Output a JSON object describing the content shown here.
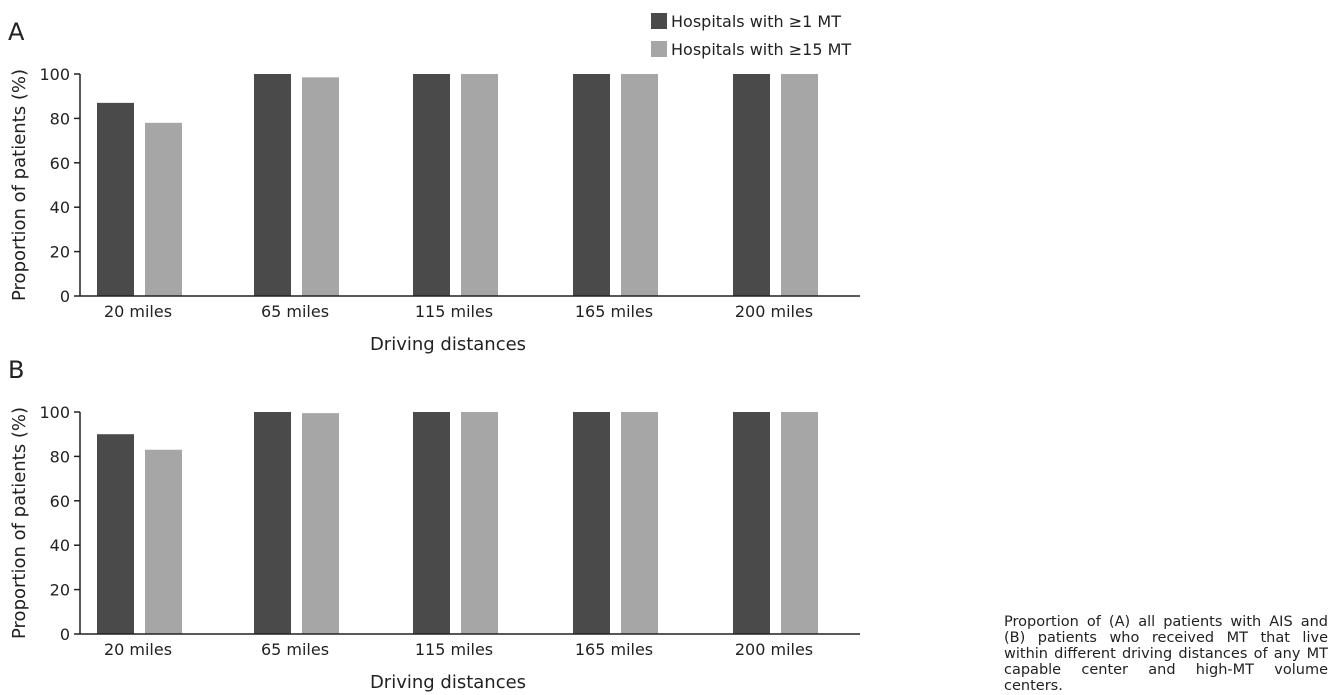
{
  "legend": {
    "entries": [
      "Hospitals with ≥1 MT",
      "Hospitals with ≥15 MT"
    ]
  },
  "caption": "Proportion of (A) all patients with AIS and (B) patients who received MT that live within different driving distances of any MT capable center and high-MT volume centers.",
  "colors": {
    "series1": "#4a4a4a",
    "series2": "#a6a6a6",
    "axis": "#222222"
  },
  "chart_data": [
    {
      "panel": "A",
      "type": "bar",
      "categories": [
        "20 miles",
        "65 miles",
        "115 miles",
        "165 miles",
        "200 miles"
      ],
      "series": [
        {
          "name": "Hospitals with ≥1 MT",
          "values": [
            87,
            100,
            100,
            100,
            100
          ]
        },
        {
          "name": "Hospitals with ≥15 MT",
          "values": [
            78,
            98.5,
            100,
            100,
            100
          ]
        }
      ],
      "xlabel": "Driving distances",
      "ylabel": "Proportion of patients (%)",
      "ylim": [
        0,
        100
      ],
      "yticks": [
        0,
        20,
        40,
        60,
        80,
        100
      ],
      "grid": false,
      "legend_position": "top-right"
    },
    {
      "panel": "B",
      "type": "bar",
      "categories": [
        "20 miles",
        "65 miles",
        "115 miles",
        "165 miles",
        "200 miles"
      ],
      "series": [
        {
          "name": "Hospitals with ≥1 MT",
          "values": [
            90,
            100,
            100,
            100,
            100
          ]
        },
        {
          "name": "Hospitals with ≥15 MT",
          "values": [
            83,
            99.5,
            100,
            100,
            100
          ]
        }
      ],
      "xlabel": "Driving distances",
      "ylabel": "Proportion of patients (%)",
      "ylim": [
        0,
        100
      ],
      "yticks": [
        0,
        20,
        40,
        60,
        80,
        100
      ],
      "grid": false
    }
  ]
}
